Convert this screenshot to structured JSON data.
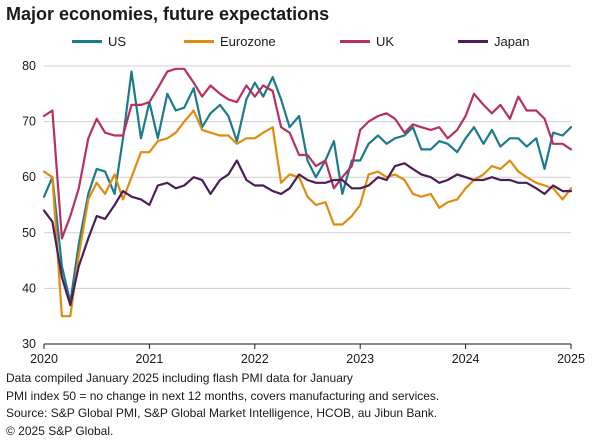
{
  "chart_data": {
    "type": "line",
    "title": "Major economies, future expectations",
    "xlabel": "",
    "ylabel": "",
    "xlim": [
      2020,
      2025
    ],
    "ylim": [
      30,
      80
    ],
    "yticks": [
      30,
      40,
      50,
      60,
      70,
      80
    ],
    "xticks": [
      2020,
      2021,
      2022,
      2023,
      2024,
      2025
    ],
    "grid": "horizontal",
    "legend": "top",
    "series": [
      {
        "name": "US",
        "color": "#1b7b8c",
        "points": [
          [
            2020.0,
            56.5
          ],
          [
            2020.08,
            60.0
          ],
          [
            2020.17,
            44.0
          ],
          [
            2020.25,
            37.5
          ],
          [
            2020.33,
            48.0
          ],
          [
            2020.42,
            57.0
          ],
          [
            2020.5,
            61.5
          ],
          [
            2020.58,
            61.0
          ],
          [
            2020.67,
            57.0
          ],
          [
            2020.75,
            67.0
          ],
          [
            2020.83,
            79.0
          ],
          [
            2020.92,
            67.0
          ],
          [
            2021.0,
            73.5
          ],
          [
            2021.08,
            67.0
          ],
          [
            2021.17,
            75.0
          ],
          [
            2021.25,
            72.0
          ],
          [
            2021.33,
            72.5
          ],
          [
            2021.42,
            76.0
          ],
          [
            2021.5,
            69.0
          ],
          [
            2021.58,
            71.5
          ],
          [
            2021.67,
            73.0
          ],
          [
            2021.75,
            71.0
          ],
          [
            2021.83,
            66.5
          ],
          [
            2021.92,
            74.0
          ],
          [
            2022.0,
            77.0
          ],
          [
            2022.08,
            74.5
          ],
          [
            2022.17,
            78.0
          ],
          [
            2022.25,
            74.0
          ],
          [
            2022.33,
            69.0
          ],
          [
            2022.42,
            71.0
          ],
          [
            2022.5,
            63.0
          ],
          [
            2022.58,
            60.0
          ],
          [
            2022.67,
            63.0
          ],
          [
            2022.75,
            66.5
          ],
          [
            2022.83,
            57.0
          ],
          [
            2022.92,
            63.0
          ],
          [
            2023.0,
            63.0
          ],
          [
            2023.08,
            66.0
          ],
          [
            2023.17,
            67.5
          ],
          [
            2023.25,
            66.0
          ],
          [
            2023.33,
            67.0
          ],
          [
            2023.42,
            67.5
          ],
          [
            2023.5,
            69.0
          ],
          [
            2023.58,
            65.0
          ],
          [
            2023.67,
            65.0
          ],
          [
            2023.75,
            66.5
          ],
          [
            2023.83,
            66.0
          ],
          [
            2023.92,
            64.5
          ],
          [
            2024.0,
            67.0
          ],
          [
            2024.08,
            69.0
          ],
          [
            2024.17,
            66.0
          ],
          [
            2024.25,
            68.5
          ],
          [
            2024.33,
            65.5
          ],
          [
            2024.42,
            67.0
          ],
          [
            2024.5,
            67.0
          ],
          [
            2024.58,
            65.5
          ],
          [
            2024.67,
            67.0
          ],
          [
            2024.75,
            61.5
          ],
          [
            2024.83,
            68.0
          ],
          [
            2024.92,
            67.5
          ],
          [
            2025.0,
            69.0
          ]
        ]
      },
      {
        "name": "Eurozone",
        "color": "#e08c10",
        "points": [
          [
            2020.0,
            61.0
          ],
          [
            2020.08,
            60.0
          ],
          [
            2020.17,
            35.0
          ],
          [
            2020.25,
            35.0
          ],
          [
            2020.33,
            46.0
          ],
          [
            2020.42,
            56.0
          ],
          [
            2020.5,
            59.0
          ],
          [
            2020.58,
            57.0
          ],
          [
            2020.67,
            60.5
          ],
          [
            2020.75,
            56.0
          ],
          [
            2020.83,
            60.0
          ],
          [
            2020.92,
            64.5
          ],
          [
            2021.0,
            64.5
          ],
          [
            2021.08,
            66.5
          ],
          [
            2021.17,
            67.0
          ],
          [
            2021.25,
            68.0
          ],
          [
            2021.33,
            70.0
          ],
          [
            2021.42,
            72.0
          ],
          [
            2021.5,
            68.5
          ],
          [
            2021.58,
            68.0
          ],
          [
            2021.67,
            67.5
          ],
          [
            2021.75,
            67.5
          ],
          [
            2021.83,
            66.0
          ],
          [
            2021.92,
            67.0
          ],
          [
            2022.0,
            67.0
          ],
          [
            2022.08,
            68.0
          ],
          [
            2022.17,
            69.0
          ],
          [
            2022.25,
            59.0
          ],
          [
            2022.33,
            60.5
          ],
          [
            2022.42,
            60.0
          ],
          [
            2022.5,
            56.5
          ],
          [
            2022.58,
            55.0
          ],
          [
            2022.67,
            55.5
          ],
          [
            2022.75,
            51.5
          ],
          [
            2022.83,
            51.5
          ],
          [
            2022.92,
            53.0
          ],
          [
            2023.0,
            55.0
          ],
          [
            2023.08,
            60.5
          ],
          [
            2023.17,
            61.0
          ],
          [
            2023.25,
            60.0
          ],
          [
            2023.33,
            60.5
          ],
          [
            2023.42,
            59.5
          ],
          [
            2023.5,
            57.0
          ],
          [
            2023.58,
            56.5
          ],
          [
            2023.67,
            57.0
          ],
          [
            2023.75,
            54.5
          ],
          [
            2023.83,
            55.5
          ],
          [
            2023.92,
            56.0
          ],
          [
            2024.0,
            58.0
          ],
          [
            2024.08,
            59.5
          ],
          [
            2024.17,
            60.5
          ],
          [
            2024.25,
            62.0
          ],
          [
            2024.33,
            61.5
          ],
          [
            2024.42,
            63.0
          ],
          [
            2024.5,
            61.0
          ],
          [
            2024.58,
            60.0
          ],
          [
            2024.67,
            59.0
          ],
          [
            2024.75,
            58.5
          ],
          [
            2024.83,
            58.0
          ],
          [
            2024.92,
            56.0
          ],
          [
            2025.0,
            58.0
          ]
        ]
      },
      {
        "name": "UK",
        "color": "#b7305e",
        "points": [
          [
            2020.0,
            71.0
          ],
          [
            2020.08,
            72.0
          ],
          [
            2020.17,
            49.0
          ],
          [
            2020.25,
            53.0
          ],
          [
            2020.33,
            58.0
          ],
          [
            2020.42,
            67.0
          ],
          [
            2020.5,
            70.5
          ],
          [
            2020.58,
            68.0
          ],
          [
            2020.67,
            67.5
          ],
          [
            2020.75,
            67.5
          ],
          [
            2020.83,
            73.0
          ],
          [
            2020.92,
            73.0
          ],
          [
            2021.0,
            73.5
          ],
          [
            2021.08,
            76.0
          ],
          [
            2021.17,
            79.0
          ],
          [
            2021.25,
            79.5
          ],
          [
            2021.33,
            79.5
          ],
          [
            2021.42,
            77.0
          ],
          [
            2021.5,
            74.5
          ],
          [
            2021.58,
            76.5
          ],
          [
            2021.67,
            75.0
          ],
          [
            2021.75,
            74.0
          ],
          [
            2021.83,
            73.5
          ],
          [
            2021.92,
            76.5
          ],
          [
            2022.0,
            74.5
          ],
          [
            2022.08,
            76.5
          ],
          [
            2022.17,
            75.5
          ],
          [
            2022.25,
            69.0
          ],
          [
            2022.33,
            68.0
          ],
          [
            2022.42,
            64.0
          ],
          [
            2022.5,
            64.0
          ],
          [
            2022.58,
            62.0
          ],
          [
            2022.67,
            63.0
          ],
          [
            2022.75,
            58.0
          ],
          [
            2022.83,
            60.0
          ],
          [
            2022.92,
            62.0
          ],
          [
            2023.0,
            68.5
          ],
          [
            2023.08,
            70.0
          ],
          [
            2023.17,
            71.0
          ],
          [
            2023.25,
            71.5
          ],
          [
            2023.33,
            70.5
          ],
          [
            2023.42,
            68.0
          ],
          [
            2023.5,
            69.5
          ],
          [
            2023.58,
            69.0
          ],
          [
            2023.67,
            68.5
          ],
          [
            2023.75,
            69.0
          ],
          [
            2023.83,
            67.0
          ],
          [
            2023.92,
            68.5
          ],
          [
            2024.0,
            71.0
          ],
          [
            2024.08,
            75.0
          ],
          [
            2024.17,
            73.0
          ],
          [
            2024.25,
            71.5
          ],
          [
            2024.33,
            73.0
          ],
          [
            2024.42,
            70.5
          ],
          [
            2024.5,
            74.5
          ],
          [
            2024.58,
            72.0
          ],
          [
            2024.67,
            72.0
          ],
          [
            2024.75,
            70.5
          ],
          [
            2024.83,
            66.0
          ],
          [
            2024.92,
            66.0
          ],
          [
            2025.0,
            65.0
          ]
        ]
      },
      {
        "name": "Japan",
        "color": "#4b1e58",
        "points": [
          [
            2020.0,
            54.0
          ],
          [
            2020.08,
            52.0
          ],
          [
            2020.17,
            42.0
          ],
          [
            2020.25,
            37.0
          ],
          [
            2020.33,
            44.0
          ],
          [
            2020.42,
            49.0
          ],
          [
            2020.5,
            53.0
          ],
          [
            2020.58,
            52.5
          ],
          [
            2020.67,
            55.0
          ],
          [
            2020.75,
            57.5
          ],
          [
            2020.83,
            56.5
          ],
          [
            2020.92,
            56.0
          ],
          [
            2021.0,
            55.0
          ],
          [
            2021.08,
            58.5
          ],
          [
            2021.17,
            59.0
          ],
          [
            2021.25,
            58.0
          ],
          [
            2021.33,
            58.5
          ],
          [
            2021.42,
            60.0
          ],
          [
            2021.5,
            59.5
          ],
          [
            2021.58,
            57.0
          ],
          [
            2021.67,
            59.5
          ],
          [
            2021.75,
            60.5
          ],
          [
            2021.83,
            63.0
          ],
          [
            2021.92,
            59.5
          ],
          [
            2022.0,
            58.5
          ],
          [
            2022.08,
            58.5
          ],
          [
            2022.17,
            57.5
          ],
          [
            2022.25,
            57.0
          ],
          [
            2022.33,
            58.0
          ],
          [
            2022.42,
            60.5
          ],
          [
            2022.5,
            59.5
          ],
          [
            2022.58,
            59.0
          ],
          [
            2022.67,
            59.0
          ],
          [
            2022.75,
            59.5
          ],
          [
            2022.83,
            59.5
          ],
          [
            2022.92,
            58.0
          ],
          [
            2023.0,
            58.0
          ],
          [
            2023.08,
            58.5
          ],
          [
            2023.17,
            60.0
          ],
          [
            2023.25,
            59.5
          ],
          [
            2023.33,
            62.0
          ],
          [
            2023.42,
            62.5
          ],
          [
            2023.5,
            61.5
          ],
          [
            2023.58,
            60.5
          ],
          [
            2023.67,
            60.0
          ],
          [
            2023.75,
            59.0
          ],
          [
            2023.83,
            59.5
          ],
          [
            2023.92,
            60.5
          ],
          [
            2024.0,
            60.0
          ],
          [
            2024.08,
            59.5
          ],
          [
            2024.17,
            59.5
          ],
          [
            2024.25,
            60.0
          ],
          [
            2024.33,
            59.5
          ],
          [
            2024.42,
            59.5
          ],
          [
            2024.5,
            59.0
          ],
          [
            2024.58,
            59.0
          ],
          [
            2024.67,
            58.0
          ],
          [
            2024.75,
            57.0
          ],
          [
            2024.83,
            58.5
          ],
          [
            2024.92,
            57.5
          ],
          [
            2025.0,
            57.5
          ]
        ]
      }
    ]
  },
  "footer": {
    "line1": "Data compiled January 2025 including flash PMI data for January",
    "line2": "PMI index 50 = no change in next 12 months, covers manufacturing and services.",
    "line3": "Source: S&P Global PMI, S&P Global Market Intelligence, HCOB, au Jibun Bank.",
    "line4": "© 2025 S&P Global."
  }
}
